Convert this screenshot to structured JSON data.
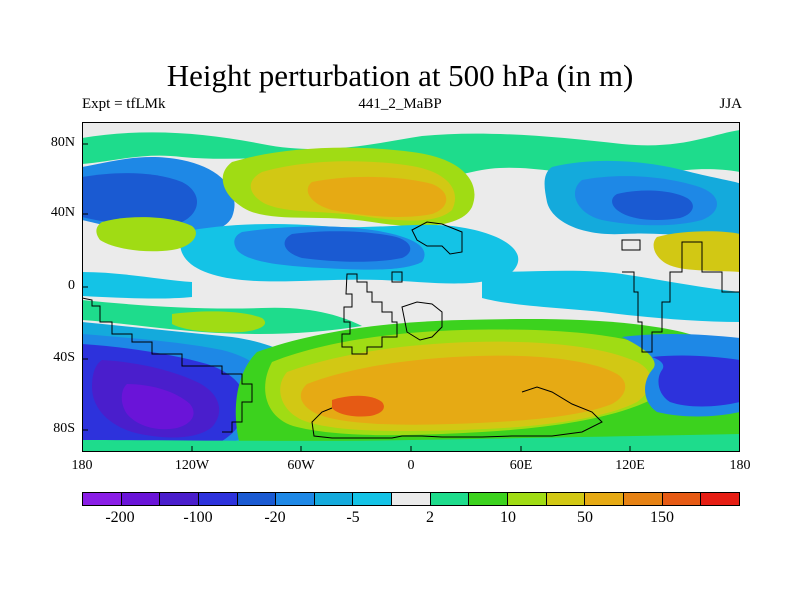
{
  "title": "Height perturbation at 500 hPa (in m)",
  "left_label": "Expt = tfLMk",
  "center_label": "441_2_MaBP",
  "right_label": "JJA",
  "lat_ticks": [
    "80N",
    "40N",
    "0",
    "40S",
    "80S"
  ],
  "lon_ticks": [
    "180",
    "120W",
    "60W",
    "0",
    "60E",
    "120E",
    "180"
  ],
  "colorbar": {
    "colors": [
      "#8a1ee6",
      "#6a14d8",
      "#4a1ecc",
      "#2d32dc",
      "#1a5ad2",
      "#1e88e6",
      "#14aadc",
      "#14c3e6",
      "#ebebeb",
      "#1edc8c",
      "#3cd21e",
      "#a0dc14",
      "#d2c814",
      "#e6aa14",
      "#e68214",
      "#e65a14",
      "#e61e14"
    ],
    "labels": [
      "-200",
      "-100",
      "-20",
      "-5",
      "2",
      "10",
      "50",
      "150"
    ]
  },
  "colors": {
    "land_outline": "#000000",
    "neutral": "#ebebeb"
  }
}
